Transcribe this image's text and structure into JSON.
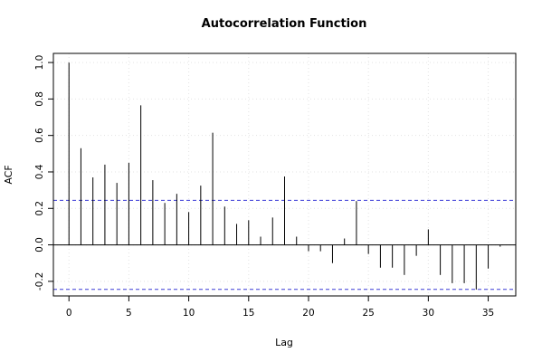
{
  "chart_data": {
    "type": "bar",
    "title": "Autocorrelation Function",
    "xlabel": "Lag",
    "ylabel": "ACF",
    "xlim": [
      -1.3,
      37.3
    ],
    "ylim": [
      -0.28,
      1.05
    ],
    "x_ticks": [
      0,
      5,
      10,
      15,
      20,
      25,
      30,
      35
    ],
    "y_ticks": [
      -0.2,
      0.0,
      0.2,
      0.4,
      0.6,
      0.8,
      1.0
    ],
    "y_tick_labels": [
      "-0.2",
      "0.0",
      "0.2",
      "0.4",
      "0.6",
      "0.8",
      "1.0"
    ],
    "grid": true,
    "confidence_bounds": [
      0.244,
      -0.244
    ],
    "confidence_color": "#3a3ad6",
    "series": [
      {
        "x": [
          0,
          1,
          2,
          3,
          4,
          5,
          6,
          7,
          8,
          9,
          10,
          11,
          12,
          13,
          14,
          15,
          16,
          17,
          18,
          19,
          20,
          21,
          22,
          23,
          24,
          25,
          26,
          27,
          28,
          29,
          30,
          31,
          32,
          33,
          34,
          35,
          36
        ],
        "values": [
          1.0,
          0.53,
          0.37,
          0.44,
          0.34,
          0.45,
          0.765,
          0.355,
          0.23,
          0.28,
          0.18,
          0.325,
          0.615,
          0.21,
          0.115,
          0.135,
          0.045,
          0.15,
          0.375,
          0.045,
          -0.035,
          -0.035,
          -0.1,
          0.035,
          0.24,
          -0.05,
          -0.125,
          -0.125,
          -0.165,
          -0.06,
          0.085,
          -0.165,
          -0.21,
          -0.21,
          -0.245,
          -0.13,
          -0.01
        ]
      }
    ]
  }
}
